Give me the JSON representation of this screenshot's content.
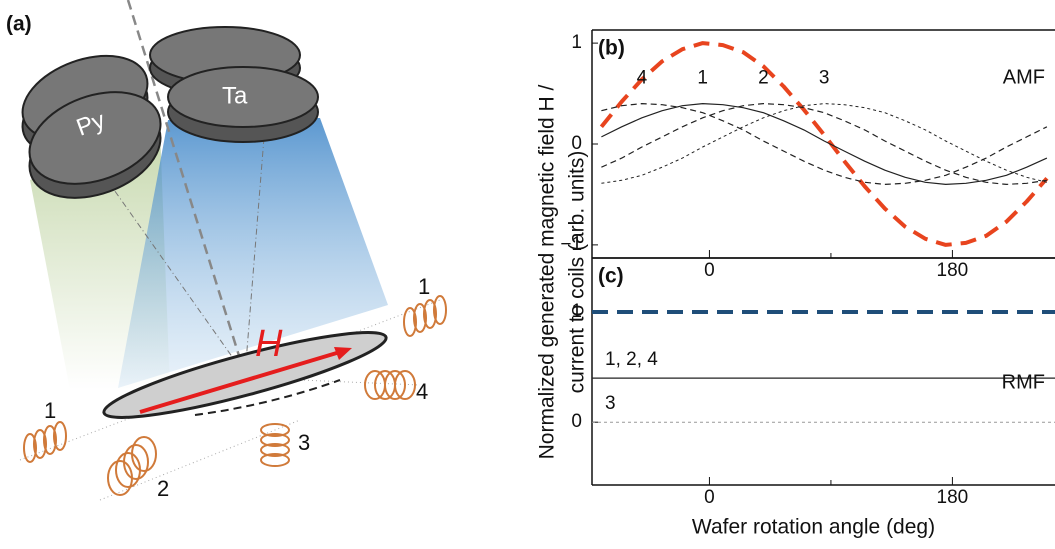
{
  "illustration": {
    "panel": "(a)",
    "targets": [
      "Py",
      "Ta"
    ],
    "field": "H",
    "coil_labels": [
      "1",
      "4",
      "1",
      "2",
      "3"
    ]
  },
  "ylabel": [
    "Normalized generated magnetic field H /",
    "current to coils (arb. units)"
  ],
  "chart_data": [
    {
      "type": "line",
      "panel": "(b)",
      "annotation": "AMF",
      "x": [
        -80,
        -65,
        -50,
        -35,
        -20,
        -5,
        10,
        25,
        40,
        55,
        70,
        85,
        100,
        115,
        130,
        145,
        160,
        175,
        190,
        205,
        220,
        235,
        250
      ],
      "xlim": [
        -87,
        256
      ],
      "xticks": [
        0,
        180
      ],
      "xminor_ticks": [
        90
      ],
      "ylim": [
        -1.13,
        1.13
      ],
      "yticks": [
        {
          "value": -1,
          "label": "−1"
        },
        0,
        1
      ],
      "series": [
        {
          "color": "#e8441e",
          "style": "bold-dashed",
          "values": [
            0.17,
            0.42,
            0.64,
            0.82,
            0.94,
            1.0,
            0.98,
            0.91,
            0.77,
            0.57,
            0.34,
            0.09,
            -0.17,
            -0.42,
            -0.64,
            -0.82,
            -0.94,
            -1.0,
            -0.98,
            -0.91,
            -0.77,
            -0.57,
            -0.34
          ]
        },
        {
          "name": "1",
          "color": "#222222",
          "style": "solid",
          "values": [
            0.07,
            0.17,
            0.26,
            0.33,
            0.38,
            0.4,
            0.39,
            0.36,
            0.31,
            0.23,
            0.14,
            0.03,
            -0.07,
            -0.17,
            -0.26,
            -0.33,
            -0.38,
            -0.4,
            -0.39,
            -0.36,
            -0.31,
            -0.23,
            -0.14
          ]
        },
        {
          "name": "2",
          "color": "#222222",
          "style": "dashed",
          "values": [
            -0.23,
            -0.14,
            -0.03,
            0.07,
            0.17,
            0.26,
            0.33,
            0.38,
            0.4,
            0.39,
            0.36,
            0.31,
            0.23,
            0.14,
            0.03,
            -0.07,
            -0.17,
            -0.26,
            -0.33,
            -0.38,
            -0.4,
            -0.39,
            -0.36
          ]
        },
        {
          "name": "3",
          "color": "#222222",
          "style": "dotted",
          "values": [
            -0.39,
            -0.36,
            -0.31,
            -0.23,
            -0.14,
            -0.03,
            0.07,
            0.17,
            0.26,
            0.33,
            0.38,
            0.4,
            0.39,
            0.36,
            0.31,
            0.23,
            0.14,
            0.03,
            -0.07,
            -0.17,
            -0.26,
            -0.33,
            -0.38
          ]
        },
        {
          "name": "4",
          "color": "#222222",
          "style": "dashed",
          "values": [
            0.33,
            0.38,
            0.4,
            0.39,
            0.36,
            0.31,
            0.23,
            0.14,
            0.03,
            -0.07,
            -0.17,
            -0.26,
            -0.33,
            -0.38,
            -0.4,
            -0.39,
            -0.36,
            -0.31,
            -0.23,
            -0.14,
            -0.03,
            0.07,
            0.17
          ]
        }
      ]
    },
    {
      "type": "line",
      "panel": "(c)",
      "annotation": "RMF",
      "xlabel": "Wafer rotation angle (deg)",
      "x": [
        -87,
        256
      ],
      "xlim": [
        -87,
        256
      ],
      "xticks": [
        0,
        180
      ],
      "xminor_ticks": [
        90
      ],
      "ylim": [
        -0.57,
        1.49
      ],
      "yticks": [
        0,
        1
      ],
      "series": [
        {
          "color": "#1f4e79",
          "style": "bold-dashed",
          "values": [
            1,
            1
          ]
        },
        {
          "name": "1, 2, 4",
          "color": "#222222",
          "style": "solid",
          "values": [
            0.4,
            0.4
          ]
        },
        {
          "name": "3",
          "color": "#999999",
          "style": "dotted",
          "values": [
            0,
            0
          ]
        }
      ]
    }
  ]
}
